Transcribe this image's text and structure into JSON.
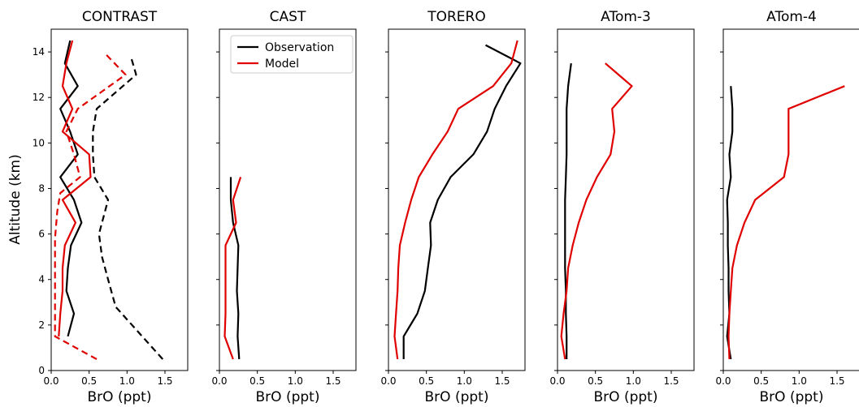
{
  "figure": {
    "ylabel": "Altitude (km)"
  },
  "legend": {
    "entries": [
      {
        "label": "Observation",
        "color": "#000000"
      },
      {
        "label": "Model",
        "color": "#e00000"
      }
    ],
    "placement": "top-right of CAST panel"
  },
  "chart_data": [
    {
      "type": "line",
      "title": "CONTRAST",
      "xlabel": "BrO (ppt)",
      "ylabel": "Altitude (km)",
      "xlim": [
        0,
        1.8
      ],
      "ylim": [
        0,
        15
      ],
      "xticks": [
        0.0,
        0.5,
        1.0,
        1.5
      ],
      "yticks": [
        0,
        2,
        4,
        6,
        8,
        10,
        12,
        14
      ],
      "series": [
        {
          "name": "Observation",
          "color": "#000000",
          "dash": "solid",
          "x": [
            0.22,
            0.3,
            0.2,
            0.22,
            0.26,
            0.4,
            0.3,
            0.12,
            0.35,
            0.25,
            0.12,
            0.35,
            0.18,
            0.25
          ],
          "y": [
            1.5,
            2.5,
            3.5,
            4.5,
            5.5,
            6.5,
            7.5,
            8.5,
            9.5,
            10.5,
            11.5,
            12.5,
            13.5,
            14.5
          ]
        },
        {
          "name": "",
          "color": "#000000",
          "dash": "dashed",
          "x": [
            1.47,
            1.2,
            0.85,
            0.75,
            0.67,
            0.63,
            0.75,
            0.57,
            0.55,
            0.55,
            0.6,
            1.12,
            1.05
          ],
          "y": [
            0.5,
            1.5,
            2.8,
            4.0,
            5.0,
            6.0,
            7.5,
            8.5,
            9.5,
            10.5,
            11.5,
            13.0,
            13.8
          ]
        },
        {
          "name": "Model",
          "color": "#e00000",
          "dash": "solid",
          "x": [
            0.1,
            0.12,
            0.15,
            0.15,
            0.18,
            0.32,
            0.15,
            0.52,
            0.5,
            0.15,
            0.28,
            0.15,
            0.2,
            0.28
          ],
          "y": [
            1.5,
            2.5,
            3.5,
            4.5,
            5.5,
            6.5,
            7.5,
            8.5,
            9.5,
            10.5,
            11.5,
            12.5,
            13.5,
            14.5
          ]
        },
        {
          "name": "",
          "color": "#e00000",
          "dash": "dashed",
          "x": [
            0.6,
            0.05,
            0.05,
            0.05,
            0.05,
            0.08,
            0.12,
            0.38,
            0.3,
            0.2,
            0.35,
            0.98,
            0.72
          ],
          "y": [
            0.5,
            1.5,
            3.0,
            4.5,
            5.8,
            7.0,
            7.8,
            8.5,
            9.5,
            10.5,
            11.5,
            13.0,
            13.9
          ]
        }
      ]
    },
    {
      "type": "line",
      "title": "CAST",
      "xlabel": "BrO (ppt)",
      "ylabel": "",
      "xlim": [
        0,
        1.8
      ],
      "ylim": [
        0,
        15
      ],
      "xticks": [
        0.0,
        0.5,
        1.0,
        1.5
      ],
      "yticks": [
        0,
        2,
        4,
        6,
        8,
        10,
        12,
        14
      ],
      "series": [
        {
          "name": "Observation",
          "color": "#000000",
          "dash": "solid",
          "x": [
            0.26,
            0.24,
            0.25,
            0.23,
            0.24,
            0.25,
            0.18,
            0.15,
            0.15
          ],
          "y": [
            0.5,
            1.5,
            2.5,
            3.5,
            4.5,
            5.5,
            6.5,
            7.5,
            8.5
          ]
        },
        {
          "name": "Model",
          "color": "#e00000",
          "dash": "solid",
          "x": [
            0.18,
            0.07,
            0.08,
            0.08,
            0.08,
            0.08,
            0.22,
            0.18,
            0.28
          ],
          "y": [
            0.5,
            1.5,
            2.5,
            3.5,
            4.5,
            5.5,
            6.5,
            7.5,
            8.5
          ]
        }
      ]
    },
    {
      "type": "line",
      "title": "TORERO",
      "xlabel": "BrO (ppt)",
      "ylabel": "",
      "xlim": [
        0,
        1.8
      ],
      "ylim": [
        0,
        15
      ],
      "xticks": [
        0.0,
        0.5,
        1.0,
        1.5
      ],
      "yticks": [
        0,
        2,
        4,
        6,
        8,
        10,
        12,
        14
      ],
      "series": [
        {
          "name": "Observation",
          "color": "#000000",
          "dash": "solid",
          "x": [
            0.2,
            0.2,
            0.38,
            0.48,
            0.52,
            0.56,
            0.55,
            0.65,
            0.82,
            1.12,
            1.3,
            1.4,
            1.55,
            1.74,
            1.28
          ],
          "y": [
            0.5,
            1.5,
            2.5,
            3.5,
            4.5,
            5.5,
            6.5,
            7.5,
            8.5,
            9.5,
            10.5,
            11.5,
            12.5,
            13.5,
            14.3
          ]
        },
        {
          "name": "Model",
          "color": "#e00000",
          "dash": "solid",
          "x": [
            0.12,
            0.08,
            0.1,
            0.12,
            0.13,
            0.15,
            0.22,
            0.3,
            0.4,
            0.58,
            0.78,
            0.92,
            1.38,
            1.62,
            1.7
          ],
          "y": [
            0.5,
            1.5,
            2.5,
            3.5,
            4.5,
            5.5,
            6.5,
            7.5,
            8.5,
            9.5,
            10.5,
            11.5,
            12.5,
            13.5,
            14.5
          ]
        }
      ]
    },
    {
      "type": "line",
      "title": "ATom-3",
      "xlabel": "BrO (ppt)",
      "ylabel": "",
      "xlim": [
        0,
        1.8
      ],
      "ylim": [
        0,
        15
      ],
      "xticks": [
        0.0,
        0.5,
        1.0,
        1.5
      ],
      "yticks": [
        0,
        2,
        4,
        6,
        8,
        10,
        12,
        14
      ],
      "series": [
        {
          "name": "Observation",
          "color": "#000000",
          "dash": "solid",
          "x": [
            0.12,
            0.12,
            0.11,
            0.11,
            0.1,
            0.1,
            0.1,
            0.1,
            0.11,
            0.12,
            0.12,
            0.12,
            0.14,
            0.18
          ],
          "y": [
            0.5,
            1.5,
            2.5,
            3.5,
            4.5,
            5.5,
            6.5,
            7.5,
            8.5,
            9.5,
            10.5,
            11.5,
            12.5,
            13.5
          ]
        },
        {
          "name": "Model",
          "color": "#e00000",
          "dash": "solid",
          "x": [
            0.1,
            0.05,
            0.08,
            0.12,
            0.14,
            0.2,
            0.28,
            0.38,
            0.52,
            0.7,
            0.75,
            0.72,
            0.98,
            0.63
          ],
          "y": [
            0.5,
            1.5,
            2.5,
            3.5,
            4.5,
            5.5,
            6.5,
            7.5,
            8.5,
            9.5,
            10.5,
            11.5,
            12.5,
            13.5
          ]
        }
      ]
    },
    {
      "type": "line",
      "title": "ATom-4",
      "xlabel": "BrO (ppt)",
      "ylabel": "",
      "xlim": [
        0,
        1.8
      ],
      "ylim": [
        0,
        15
      ],
      "xticks": [
        0.0,
        0.5,
        1.0,
        1.5
      ],
      "yticks": [
        0,
        2,
        4,
        6,
        8,
        10,
        12,
        14
      ],
      "series": [
        {
          "name": "Observation",
          "color": "#000000",
          "dash": "solid",
          "x": [
            0.1,
            0.05,
            0.08,
            0.07,
            0.07,
            0.06,
            0.06,
            0.05,
            0.1,
            0.08,
            0.12,
            0.12,
            0.1
          ],
          "y": [
            0.5,
            1.5,
            2.5,
            3.5,
            4.5,
            5.5,
            6.5,
            7.5,
            8.5,
            9.5,
            10.5,
            11.5,
            12.5
          ]
        },
        {
          "name": "Model",
          "color": "#e00000",
          "dash": "solid",
          "x": [
            0.08,
            0.07,
            0.08,
            0.1,
            0.12,
            0.18,
            0.28,
            0.42,
            0.8,
            0.86,
            0.86,
            0.86,
            1.6
          ],
          "y": [
            0.5,
            1.5,
            2.5,
            3.5,
            4.5,
            5.5,
            6.5,
            7.5,
            8.5,
            9.5,
            10.5,
            11.5,
            12.5
          ]
        }
      ]
    }
  ]
}
